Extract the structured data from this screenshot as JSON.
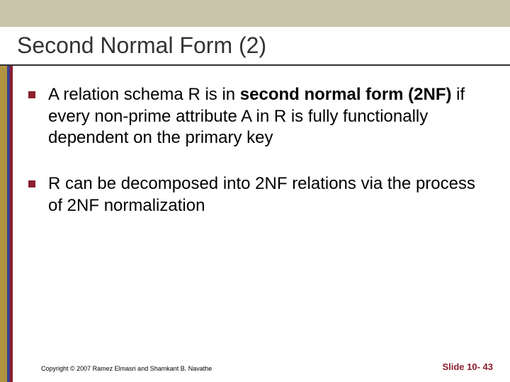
{
  "colors": {
    "top_bar": "#c7c6ab",
    "title_text": "#333333",
    "title_underline": "#333333",
    "side_stripe_a": "#b19440",
    "side_stripe_b": "#3d3f8e",
    "side_stripe_c": "#8a1f2e",
    "bullet_marker": "#8a1f2e",
    "body_text": "#000000",
    "slide_number": "#8a1f2e",
    "background": "#ffffff"
  },
  "title": "Second Normal Form (2)",
  "bullets": [
    {
      "prefix": "A relation schema R is in ",
      "bold": "second normal form (2NF)",
      "suffix": " if every non-prime attribute A in R is fully functionally dependent on the primary key"
    },
    {
      "prefix": "R can be decomposed into 2NF relations via the process of 2NF normalization",
      "bold": "",
      "suffix": ""
    }
  ],
  "footer": {
    "copyright": "Copyright © 2007 Ramez Elmasri and Shamkant B. Navathe",
    "slide_number": "Slide 10- 43"
  },
  "typography": {
    "title_fontsize": 32,
    "body_fontsize": 24,
    "copyright_fontsize": 9,
    "slidenum_fontsize": 13
  }
}
